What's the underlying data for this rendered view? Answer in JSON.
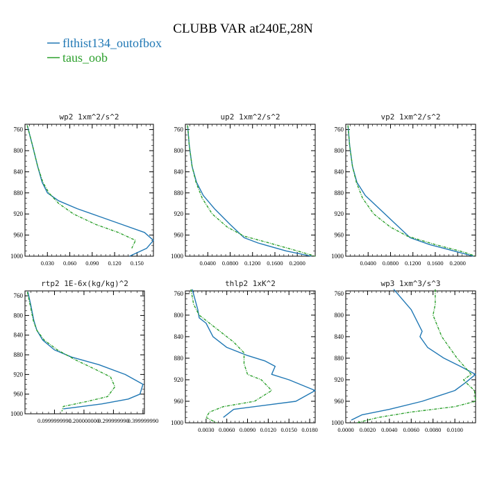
{
  "figure": {
    "title": "CLUBB VAR at240E,28N",
    "legend": [
      {
        "label": "flthist134_outofbox",
        "color": "#1f77b4",
        "dash": "solid"
      },
      {
        "label": "taus_oob",
        "color": "#2ca02c",
        "dash": "dashed"
      }
    ]
  },
  "chart_data": [
    {
      "type": "line",
      "title": "wp2  1xm^2/s^2",
      "y_ticks": [
        "760",
        "800",
        "840",
        "880",
        "920",
        "960",
        "1000"
      ],
      "x_ticks": [
        "0.030",
        "0.060",
        "0.090",
        "0.120",
        "0.150"
      ],
      "ylim": [
        1000,
        750
      ],
      "xlim": [
        0.0,
        0.172
      ],
      "series": [
        {
          "name": "flthist134_outofbox",
          "color": "#1f77b4",
          "x": [
            0.003,
            0.01,
            0.017,
            0.023,
            0.03,
            0.045,
            0.07,
            0.1,
            0.13,
            0.16,
            0.172,
            0.163,
            0.14
          ],
          "y": [
            752,
            790,
            830,
            860,
            880,
            895,
            910,
            925,
            940,
            955,
            970,
            985,
            1000
          ]
        },
        {
          "name": "taus_oob",
          "color": "#2ca02c",
          "x": [
            0.003,
            0.01,
            0.017,
            0.024,
            0.032,
            0.045,
            0.065,
            0.095,
            0.125,
            0.148,
            0.143
          ],
          "y": [
            752,
            790,
            830,
            860,
            880,
            900,
            920,
            940,
            955,
            970,
            985
          ]
        }
      ]
    },
    {
      "type": "line",
      "title": "up2  1xm^2/s^2",
      "y_ticks": [
        "760",
        "800",
        "840",
        "880",
        "920",
        "960",
        "1000"
      ],
      "x_ticks": [
        "0.0400",
        "0.0800",
        "0.1200",
        "0.1600",
        "0.2000"
      ],
      "ylim": [
        1000,
        750
      ],
      "xlim": [
        0.0,
        0.232
      ],
      "series": [
        {
          "name": "flthist134_outofbox",
          "color": "#1f77b4",
          "x": [
            0.004,
            0.007,
            0.012,
            0.02,
            0.032,
            0.052,
            0.08,
            0.105,
            0.13,
            0.18,
            0.225
          ],
          "y": [
            752,
            790,
            830,
            860,
            885,
            910,
            940,
            965,
            975,
            990,
            1000
          ]
        },
        {
          "name": "taus_oob",
          "color": "#2ca02c",
          "x": [
            0.004,
            0.007,
            0.012,
            0.019,
            0.03,
            0.048,
            0.075,
            0.105,
            0.15,
            0.2,
            0.232
          ],
          "y": [
            752,
            790,
            830,
            860,
            890,
            920,
            945,
            962,
            975,
            990,
            1000
          ]
        }
      ]
    },
    {
      "type": "line",
      "title": "vp2  1xm^2/s^2",
      "y_ticks": [
        "760",
        "800",
        "840",
        "880",
        "920",
        "960",
        "1000"
      ],
      "x_ticks": [
        "0.0400",
        "0.0800",
        "0.1200",
        "0.1600",
        "0.2000"
      ],
      "ylim": [
        1000,
        750
      ],
      "xlim": [
        0.0,
        0.232
      ],
      "series": [
        {
          "name": "flthist134_outofbox",
          "color": "#1f77b4",
          "x": [
            0.004,
            0.007,
            0.012,
            0.02,
            0.035,
            0.06,
            0.09,
            0.115,
            0.15,
            0.2,
            0.228
          ],
          "y": [
            752,
            790,
            830,
            860,
            885,
            910,
            940,
            965,
            978,
            992,
            1000
          ]
        },
        {
          "name": "taus_oob",
          "color": "#2ca02c",
          "x": [
            0.004,
            0.007,
            0.012,
            0.019,
            0.03,
            0.05,
            0.08,
            0.11,
            0.16,
            0.21,
            0.232
          ],
          "y": [
            752,
            790,
            830,
            860,
            890,
            920,
            945,
            962,
            978,
            992,
            1000
          ]
        }
      ]
    },
    {
      "type": "line",
      "title": "rtp2  1E-6x(kg/kg)^2",
      "y_ticks": [
        "760",
        "800",
        "840",
        "880",
        "920",
        "960",
        "1000"
      ],
      "x_ticks": [
        "0.0999999990",
        "0.200000000",
        "0.299999990",
        "0.399999990"
      ],
      "ylim": [
        1000,
        750
      ],
      "xlim": [
        0.0,
        0.405
      ],
      "series": [
        {
          "name": "flthist134_outofbox",
          "color": "#1f77b4",
          "x": [
            0.01,
            0.02,
            0.03,
            0.04,
            0.06,
            0.1,
            0.16,
            0.25,
            0.34,
            0.4,
            0.39,
            0.35,
            0.26,
            0.13
          ],
          "y": [
            752,
            780,
            810,
            830,
            850,
            870,
            885,
            900,
            920,
            940,
            960,
            970,
            980,
            990
          ]
        },
        {
          "name": "taus_oob",
          "color": "#2ca02c",
          "x": [
            0.008,
            0.018,
            0.028,
            0.04,
            0.065,
            0.11,
            0.17,
            0.24,
            0.29,
            0.305,
            0.28,
            0.21,
            0.13,
            0.125
          ],
          "y": [
            752,
            780,
            810,
            830,
            850,
            870,
            890,
            910,
            925,
            945,
            965,
            975,
            985,
            995
          ]
        }
      ]
    },
    {
      "type": "line",
      "title": "thlp2  1xK^2",
      "y_ticks": [
        "760",
        "800",
        "840",
        "880",
        "920",
        "960",
        "1000"
      ],
      "x_ticks": [
        "0.0030",
        "0.0060",
        "0.0090",
        "0.0120",
        "0.0150",
        "0.0180"
      ],
      "ylim": [
        1000,
        755
      ],
      "xlim": [
        0.0,
        0.0188
      ],
      "series": [
        {
          "name": "flthist134_outofbox",
          "color": "#1f77b4",
          "x": [
            0.001,
            0.0018,
            0.002,
            0.003,
            0.004,
            0.006,
            0.009,
            0.0115,
            0.013,
            0.0125,
            0.015,
            0.0188,
            0.016,
            0.007,
            0.0055
          ],
          "y": [
            752,
            790,
            805,
            815,
            840,
            860,
            875,
            885,
            895,
            910,
            920,
            940,
            960,
            975,
            990
          ]
        },
        {
          "name": "taus_oob",
          "color": "#2ca02c",
          "x": [
            0.0008,
            0.0012,
            0.002,
            0.004,
            0.007,
            0.0085,
            0.0085,
            0.009,
            0.011,
            0.0125,
            0.01,
            0.0055,
            0.0035,
            0.003,
            0.0045
          ],
          "y": [
            752,
            780,
            800,
            820,
            850,
            870,
            890,
            910,
            920,
            940,
            960,
            970,
            980,
            990,
            1000
          ]
        }
      ]
    },
    {
      "type": "line",
      "title": "wp3  1xm^3/s^3",
      "y_ticks": [
        "760",
        "800",
        "840",
        "880",
        "920",
        "960",
        "1000"
      ],
      "x_ticks": [
        "0.0000",
        "0.0020",
        "0.0040",
        "0.0060",
        "0.0080",
        "0.0100"
      ],
      "ylim": [
        1000,
        755
      ],
      "xlim": [
        0.0,
        0.0119
      ],
      "series": [
        {
          "name": "flthist134_outofbox",
          "color": "#1f77b4",
          "x": [
            0.0044,
            0.006,
            0.007,
            0.0068,
            0.0075,
            0.009,
            0.0105,
            0.0119,
            0.011,
            0.01,
            0.007,
            0.004,
            0.0015,
            0.0005
          ],
          "y": [
            752,
            790,
            830,
            840,
            860,
            880,
            895,
            910,
            925,
            940,
            960,
            975,
            985,
            995
          ]
        },
        {
          "name": "taus_oob",
          "color": "#2ca02c",
          "x": [
            0.0082,
            0.0082,
            0.008,
            0.0088,
            0.0102,
            0.0115,
            0.0108,
            0.011,
            0.0118,
            0.0119,
            0.01,
            0.006,
            0.003,
            0.001
          ],
          "y": [
            752,
            780,
            800,
            840,
            880,
            910,
            920,
            925,
            940,
            960,
            970,
            980,
            990,
            1000
          ]
        }
      ]
    }
  ]
}
